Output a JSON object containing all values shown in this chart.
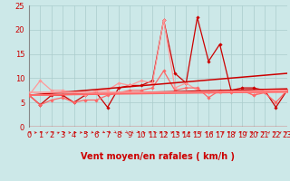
{
  "xlabel": "Vent moyen/en rafales ( km/h )",
  "xlim": [
    0,
    23
  ],
  "ylim": [
    0,
    25
  ],
  "xticks": [
    0,
    1,
    2,
    3,
    4,
    5,
    6,
    7,
    8,
    9,
    10,
    11,
    12,
    13,
    14,
    15,
    16,
    17,
    18,
    19,
    20,
    21,
    22,
    23
  ],
  "yticks": [
    0,
    5,
    10,
    15,
    20,
    25
  ],
  "bg_color": "#cce8e8",
  "grid_color": "#aacccc",
  "lines": [
    {
      "x": [
        0,
        1,
        2,
        3,
        4,
        5,
        6,
        7,
        8,
        9,
        10,
        11,
        12,
        13,
        14,
        15,
        16,
        17,
        18,
        19,
        20,
        21,
        22,
        23
      ],
      "y": [
        6.5,
        4.5,
        6.5,
        6.5,
        5.0,
        6.5,
        7.0,
        4.0,
        8.0,
        8.5,
        8.5,
        9.5,
        22.0,
        11.0,
        9.0,
        22.5,
        13.5,
        17.0,
        7.5,
        8.0,
        8.0,
        7.5,
        4.0,
        7.5
      ],
      "color": "#cc0000",
      "lw": 0.9,
      "marker": "D",
      "ms": 1.8
    },
    {
      "x": [
        0,
        1,
        2,
        3,
        4,
        5,
        6,
        7,
        8,
        9,
        10,
        11,
        12,
        13,
        14,
        15,
        16,
        17,
        18,
        19,
        20,
        21,
        22,
        23
      ],
      "y": [
        6.5,
        9.5,
        7.5,
        7.5,
        7.0,
        6.5,
        7.5,
        7.5,
        9.0,
        8.5,
        9.5,
        9.0,
        22.0,
        8.0,
        9.0,
        7.5,
        7.0,
        7.0,
        7.0,
        7.5,
        6.5,
        7.5,
        7.5,
        7.5
      ],
      "color": "#ff9999",
      "lw": 0.9,
      "marker": "D",
      "ms": 1.8
    },
    {
      "x": [
        0,
        1,
        2,
        3,
        4,
        5,
        6,
        7,
        8,
        9,
        10,
        11,
        12,
        13,
        14,
        15,
        16,
        17,
        18,
        19,
        20,
        21,
        22,
        23
      ],
      "y": [
        6.5,
        4.5,
        5.5,
        6.0,
        5.0,
        5.5,
        5.5,
        6.5,
        7.0,
        7.5,
        7.5,
        8.0,
        11.5,
        7.5,
        8.0,
        8.0,
        6.0,
        7.5,
        7.0,
        7.5,
        6.5,
        7.0,
        5.0,
        7.5
      ],
      "color": "#ff6666",
      "lw": 0.9,
      "marker": "D",
      "ms": 1.8
    },
    {
      "x": [
        0,
        23
      ],
      "y": [
        6.5,
        7.8
      ],
      "color": "#cc0000",
      "lw": 1.1,
      "marker": null,
      "ms": 0
    },
    {
      "x": [
        0,
        23
      ],
      "y": [
        6.5,
        11.0
      ],
      "color": "#cc0000",
      "lw": 1.1,
      "marker": null,
      "ms": 0
    },
    {
      "x": [
        0,
        23
      ],
      "y": [
        6.5,
        7.5
      ],
      "color": "#ff9999",
      "lw": 1.1,
      "marker": null,
      "ms": 0
    },
    {
      "x": [
        0,
        23
      ],
      "y": [
        7.0,
        7.0
      ],
      "color": "#ff9999",
      "lw": 1.1,
      "marker": null,
      "ms": 0
    },
    {
      "x": [
        0,
        23
      ],
      "y": [
        6.5,
        7.2
      ],
      "color": "#ff6666",
      "lw": 1.1,
      "marker": null,
      "ms": 0
    }
  ],
  "xlabel_fontsize": 7,
  "tick_fontsize": 6,
  "xlabel_color": "#cc0000",
  "tick_color": "#cc0000",
  "arrow_color": "#cc0000",
  "spine_color": "#888888",
  "hline_color": "#cc0000"
}
